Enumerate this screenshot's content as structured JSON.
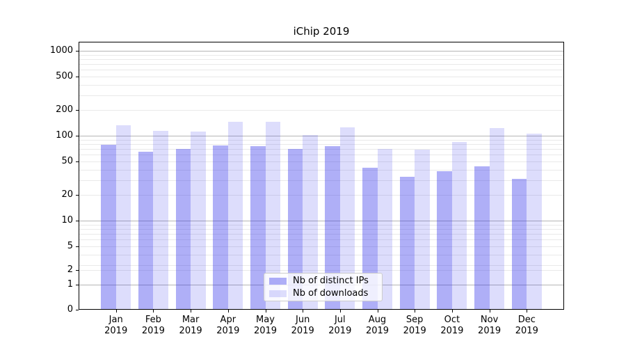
{
  "chart_data": {
    "type": "bar",
    "title": "iChip 2019",
    "categories": [
      "Jan 2019",
      "Feb 2019",
      "Mar 2019",
      "Apr 2019",
      "May 2019",
      "Jun 2019",
      "Jul 2019",
      "Aug 2019",
      "Sep 2019",
      "Oct 2019",
      "Nov 2019",
      "Dec 2019"
    ],
    "series": [
      {
        "name": "Nb of distinct IPs",
        "color": "rgba(45,45,235,0.38)",
        "values": [
          79,
          65,
          70,
          77,
          75,
          70,
          75,
          42,
          33,
          38,
          44,
          31
        ]
      },
      {
        "name": "Nb of downloads",
        "color": "rgba(45,45,235,0.16)",
        "values": [
          133,
          115,
          112,
          145,
          147,
          102,
          126,
          70,
          68,
          85,
          124,
          106
        ]
      }
    ],
    "xlabel": "",
    "ylabel": "",
    "yscale": "symlog",
    "yticks": [
      0,
      1,
      2,
      5,
      10,
      20,
      50,
      100,
      200,
      500,
      1000
    ],
    "ylim": [
      0,
      1250
    ],
    "grid": "horizontal, major and minor",
    "legend_position": "lower center",
    "colors": {
      "background": "#ffffff",
      "grid_major": "#b5b5b5",
      "grid_minor": "#e9e9e9",
      "axis": "#000000"
    }
  }
}
